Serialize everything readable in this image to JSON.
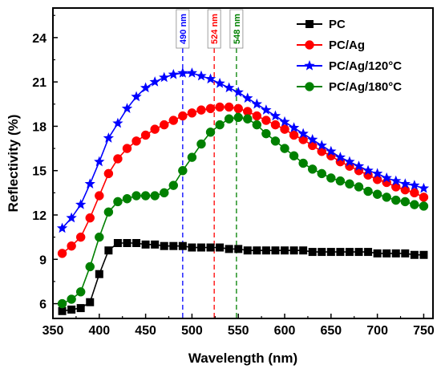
{
  "chart_data": {
    "type": "line",
    "xlabel": "Wavelength (nm)",
    "ylabel": "Reflectivity (%)",
    "xlim": [
      350,
      760
    ],
    "ylim": [
      5,
      26
    ],
    "xticks": [
      350,
      400,
      450,
      500,
      550,
      600,
      650,
      700,
      750
    ],
    "yticks": [
      6,
      9,
      12,
      15,
      18,
      21,
      24
    ],
    "grid": false,
    "legend_position": "top-right",
    "x": [
      360,
      370,
      380,
      390,
      400,
      410,
      420,
      430,
      440,
      450,
      460,
      470,
      480,
      490,
      500,
      510,
      520,
      530,
      540,
      550,
      560,
      570,
      580,
      590,
      600,
      610,
      620,
      630,
      640,
      650,
      660,
      670,
      680,
      690,
      700,
      710,
      720,
      730,
      740,
      750
    ],
    "series": [
      {
        "name": "PC",
        "color": "#000000",
        "marker": "square",
        "values": [
          5.5,
          5.6,
          5.7,
          6.1,
          8.0,
          9.6,
          10.1,
          10.1,
          10.1,
          10.0,
          10.0,
          9.9,
          9.9,
          9.9,
          9.8,
          9.8,
          9.8,
          9.8,
          9.7,
          9.7,
          9.6,
          9.6,
          9.6,
          9.6,
          9.6,
          9.6,
          9.6,
          9.5,
          9.5,
          9.5,
          9.5,
          9.5,
          9.5,
          9.5,
          9.4,
          9.4,
          9.4,
          9.4,
          9.3,
          9.3
        ]
      },
      {
        "name": "PC/Ag",
        "color": "#ff0000",
        "marker": "circle",
        "values": [
          9.4,
          9.9,
          10.5,
          11.8,
          13.3,
          14.8,
          15.8,
          16.5,
          17.0,
          17.4,
          17.8,
          18.1,
          18.4,
          18.7,
          18.9,
          19.1,
          19.2,
          19.3,
          19.3,
          19.2,
          19.0,
          18.7,
          18.4,
          18.1,
          17.8,
          17.4,
          17.1,
          16.7,
          16.3,
          16.0,
          15.6,
          15.3,
          15.0,
          14.7,
          14.4,
          14.2,
          13.9,
          13.7,
          13.5,
          13.2
        ]
      },
      {
        "name": "PC/Ag/120°C",
        "color": "#0000ff",
        "marker": "star",
        "values": [
          11.1,
          11.8,
          12.7,
          14.1,
          15.6,
          17.2,
          18.2,
          19.2,
          20.0,
          20.6,
          21.0,
          21.3,
          21.5,
          21.6,
          21.6,
          21.4,
          21.2,
          20.9,
          20.6,
          20.3,
          19.9,
          19.5,
          19.1,
          18.7,
          18.3,
          17.9,
          17.5,
          17.1,
          16.7,
          16.3,
          15.9,
          15.6,
          15.3,
          15.0,
          14.8,
          14.5,
          14.3,
          14.1,
          14.0,
          13.8
        ]
      },
      {
        "name": "PC/Ag/180°C",
        "color": "#008000",
        "marker": "circle",
        "values": [
          6.0,
          6.3,
          6.8,
          8.5,
          10.5,
          12.2,
          12.9,
          13.1,
          13.3,
          13.3,
          13.3,
          13.5,
          14.0,
          15.0,
          15.9,
          16.8,
          17.6,
          18.1,
          18.5,
          18.6,
          18.5,
          18.1,
          17.5,
          17.0,
          16.5,
          16.0,
          15.5,
          15.1,
          14.8,
          14.5,
          14.3,
          14.1,
          13.9,
          13.6,
          13.4,
          13.2,
          13.0,
          12.9,
          12.7,
          12.6
        ]
      }
    ],
    "vlines": [
      {
        "x": 490,
        "label": "490 nm",
        "color": "#0000ff"
      },
      {
        "x": 524,
        "label": "524 nm",
        "color": "#ff0000"
      },
      {
        "x": 548,
        "label": "548 nm",
        "color": "#008000"
      }
    ]
  }
}
